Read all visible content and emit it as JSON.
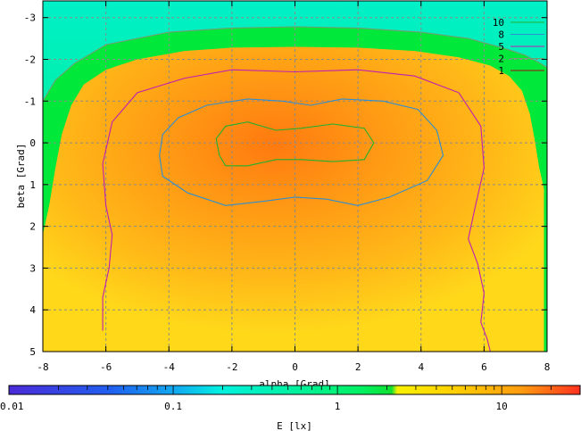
{
  "chart_data": {
    "type": "heatmap",
    "title": "",
    "xlabel": "alpha [Grad]",
    "ylabel": "beta [Grad]",
    "xlim": [
      -8,
      8
    ],
    "ylim": [
      -3.4,
      5
    ],
    "y_inverted": true,
    "grid": true,
    "x_ticks": [
      -8,
      -6,
      -4,
      -2,
      0,
      2,
      4,
      6,
      8
    ],
    "x_tick_labels": [
      "-8",
      "-6",
      "-4",
      "-2",
      "0",
      "2",
      "4",
      "6",
      "8"
    ],
    "y_ticks": [
      -3,
      -2,
      -1,
      0,
      1,
      2,
      3,
      4,
      5
    ],
    "y_tick_labels": [
      "-3",
      "-2",
      "-1",
      "0",
      "1",
      "2",
      "3",
      "4",
      "5"
    ],
    "peak": {
      "x": -1.2,
      "y": 0.2,
      "value": 15
    },
    "background": {
      "color": "#00f0c8",
      "note_value": 0.3
    },
    "bright_region": {
      "x_range": [
        -8,
        7.9
      ],
      "y_top_center": -2.3,
      "y_top_edge": -1.2,
      "value": 2.2
    },
    "contours": [
      {
        "level": 10,
        "label": "10",
        "color": "#22b02e",
        "points": [
          [
            -2.4,
            0.3
          ],
          [
            -2.5,
            -0.1
          ],
          [
            -2.2,
            -0.4
          ],
          [
            -1.5,
            -0.5
          ],
          [
            -0.6,
            -0.3
          ],
          [
            0.2,
            -0.35
          ],
          [
            1.2,
            -0.45
          ],
          [
            2.2,
            -0.35
          ],
          [
            2.5,
            0.0
          ],
          [
            2.2,
            0.4
          ],
          [
            1.2,
            0.45
          ],
          [
            0.2,
            0.4
          ],
          [
            -0.6,
            0.4
          ],
          [
            -1.5,
            0.55
          ],
          [
            -2.2,
            0.55
          ],
          [
            -2.4,
            0.3
          ]
        ]
      },
      {
        "level": 8,
        "label": "8",
        "color": "#2f8ed0",
        "points": [
          [
            -4.3,
            0.3
          ],
          [
            -4.2,
            -0.2
          ],
          [
            -3.7,
            -0.6
          ],
          [
            -2.8,
            -0.9
          ],
          [
            -1.5,
            -1.05
          ],
          [
            -0.4,
            -1.0
          ],
          [
            0.5,
            -0.9
          ],
          [
            1.5,
            -1.05
          ],
          [
            2.8,
            -1.0
          ],
          [
            3.9,
            -0.8
          ],
          [
            4.5,
            -0.3
          ],
          [
            4.7,
            0.3
          ],
          [
            4.2,
            0.9
          ],
          [
            3.0,
            1.3
          ],
          [
            2.0,
            1.5
          ],
          [
            1.0,
            1.35
          ],
          [
            0.0,
            1.3
          ],
          [
            -1.0,
            1.4
          ],
          [
            -2.2,
            1.5
          ],
          [
            -3.4,
            1.2
          ],
          [
            -4.2,
            0.8
          ],
          [
            -4.3,
            0.3
          ]
        ]
      },
      {
        "level": 5,
        "label": "5",
        "color": "#c020b0",
        "points": [
          [
            -6.1,
            4.5
          ],
          [
            -6.1,
            3.7
          ],
          [
            -5.9,
            3.0
          ],
          [
            -5.8,
            2.2
          ],
          [
            -6.0,
            1.5
          ],
          [
            -6.1,
            0.5
          ],
          [
            -5.8,
            -0.5
          ],
          [
            -5.0,
            -1.2
          ],
          [
            -3.5,
            -1.55
          ],
          [
            -2.0,
            -1.75
          ],
          [
            0.0,
            -1.7
          ],
          [
            2.0,
            -1.75
          ],
          [
            3.8,
            -1.6
          ],
          [
            5.2,
            -1.2
          ],
          [
            5.9,
            -0.4
          ],
          [
            6.0,
            0.6
          ],
          [
            5.7,
            1.6
          ],
          [
            5.5,
            2.3
          ],
          [
            5.8,
            2.9
          ],
          [
            6.0,
            3.6
          ],
          [
            5.9,
            4.3
          ],
          [
            6.1,
            4.7
          ],
          [
            6.2,
            5.0
          ]
        ]
      },
      {
        "level": 2,
        "label": "2",
        "color": "#6fa070",
        "points": [
          [
            -8.0,
            -1.0
          ],
          [
            -7.6,
            -1.5
          ],
          [
            -7.0,
            -1.9
          ],
          [
            -6.0,
            -2.35
          ],
          [
            -4.0,
            -2.65
          ],
          [
            -2.0,
            -2.75
          ],
          [
            0.0,
            -2.78
          ],
          [
            2.0,
            -2.75
          ],
          [
            4.0,
            -2.65
          ],
          [
            5.5,
            -2.5
          ],
          [
            6.7,
            -2.25
          ],
          [
            7.3,
            -2.1
          ],
          [
            7.8,
            -1.9
          ],
          [
            8.0,
            -1.8
          ]
        ]
      },
      {
        "level": 1,
        "label": "1",
        "color": "#a01010",
        "points": []
      }
    ],
    "colorbar": {
      "label": "E [lx]",
      "scale": "log",
      "range": [
        0.01,
        30
      ],
      "ticks": [
        0.01,
        0.1,
        1,
        10
      ],
      "tick_labels": [
        "0.01",
        "0.1",
        "1",
        "10"
      ]
    }
  }
}
